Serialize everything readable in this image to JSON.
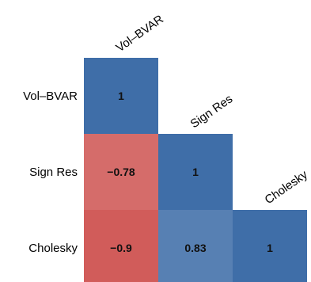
{
  "chart_data": {
    "type": "heatmap",
    "style": "lower-triangular correlation matrix",
    "variables": [
      "Vol–BVAR",
      "Sign Res",
      "Cholesky"
    ],
    "matrix": [
      [
        1,
        null,
        null
      ],
      [
        -0.78,
        1,
        null
      ],
      [
        -0.9,
        0.83,
        1
      ]
    ],
    "cell_labels": [
      [
        "1",
        "",
        ""
      ],
      [
        "−0.78",
        "1",
        ""
      ],
      [
        "−0.9",
        "0.83",
        "1"
      ]
    ],
    "color_scale": {
      "negative": "#cd4f4d",
      "neutral": "#ffffff",
      "positive": "#3f6ea8"
    },
    "range": [
      -1,
      1
    ],
    "legend": "none",
    "grid": false
  }
}
